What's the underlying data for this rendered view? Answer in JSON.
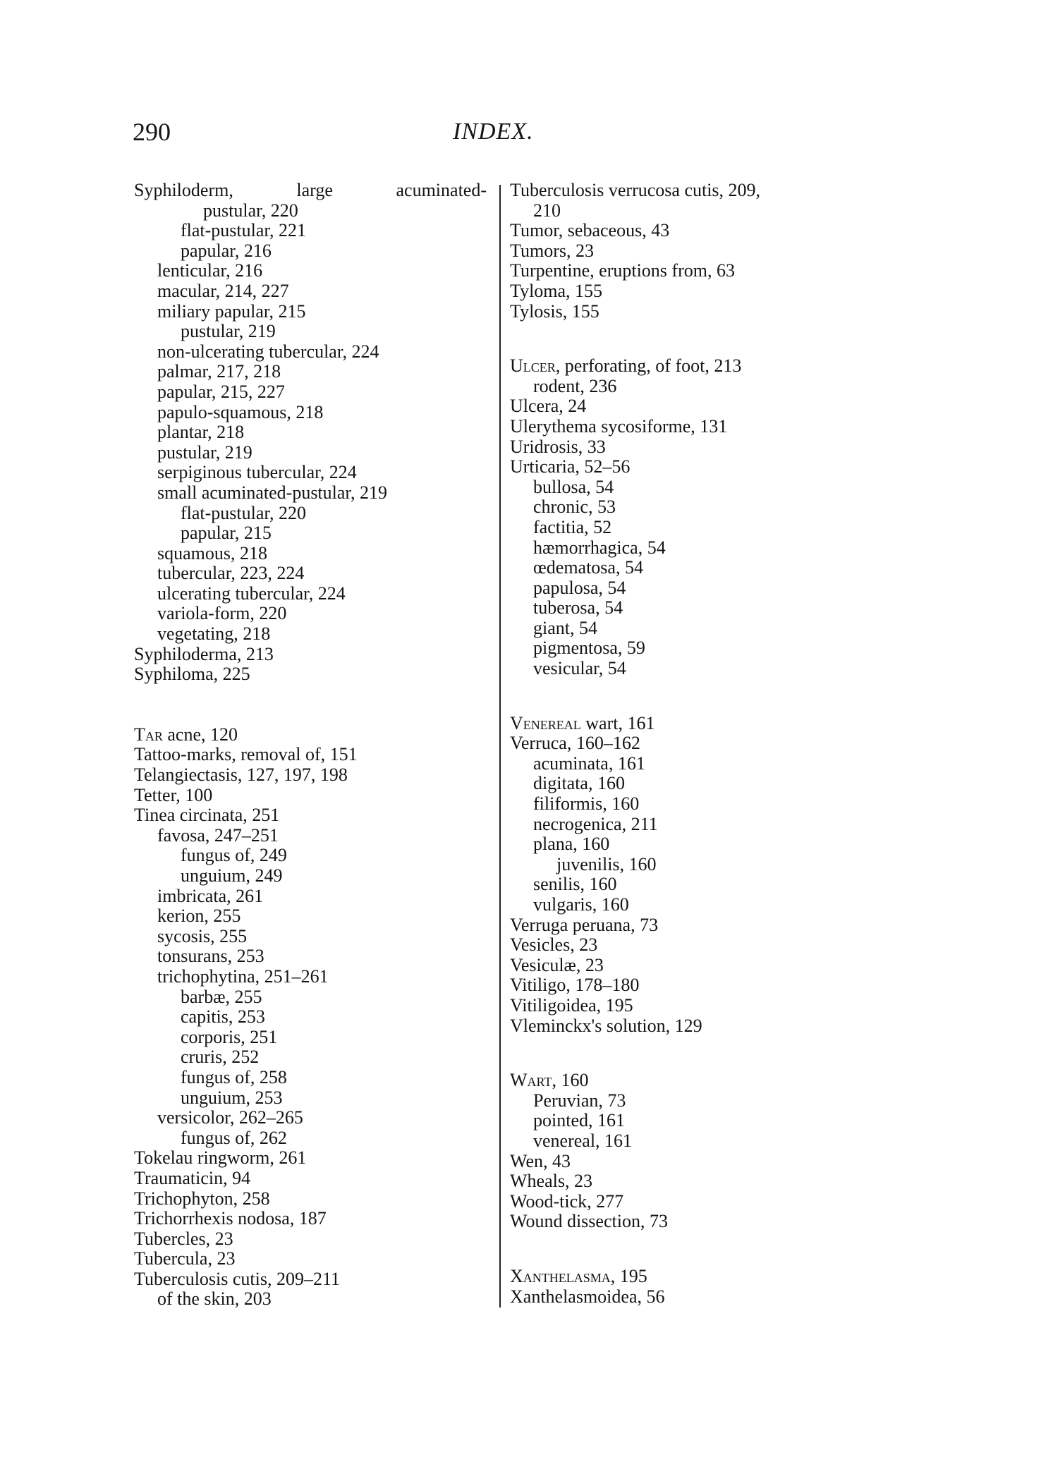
{
  "header": {
    "page_number": "290",
    "title": "INDEX."
  },
  "left_column": [
    {
      "text": "Syphiloderm, large acuminated-",
      "level": 0,
      "justify": true
    },
    {
      "text": "pustular, 220",
      "level": 3
    },
    {
      "text": "flat-pustular, 221",
      "level": 2
    },
    {
      "text": "papular, 216",
      "level": 2
    },
    {
      "text": "lenticular, 216",
      "level": 1
    },
    {
      "text": "macular, 214, 227",
      "level": 1
    },
    {
      "text": "miliary papular, 215",
      "level": 1
    },
    {
      "text": "pustular, 219",
      "level": 2
    },
    {
      "text": "non-ulcerating tubercular, 224",
      "level": 1
    },
    {
      "text": "palmar, 217, 218",
      "level": 1
    },
    {
      "text": "papular, 215, 227",
      "level": 1
    },
    {
      "text": "papulo-squamous, 218",
      "level": 1
    },
    {
      "text": "plantar, 218",
      "level": 1
    },
    {
      "text": "pustular, 219",
      "level": 1
    },
    {
      "text": "serpiginous tubercular, 224",
      "level": 1
    },
    {
      "text": "small acuminated-pustular, 219",
      "level": 1
    },
    {
      "text": "flat-pustular, 220",
      "level": 2
    },
    {
      "text": "papular, 215",
      "level": 2
    },
    {
      "text": "squamous, 218",
      "level": 1
    },
    {
      "text": "tubercular, 223, 224",
      "level": 1
    },
    {
      "text": "ulcerating tubercular, 224",
      "level": 1
    },
    {
      "text": "variola-form, 220",
      "level": 1
    },
    {
      "text": "vegetating, 218",
      "level": 1
    },
    {
      "text": "Syphiloderma, 213",
      "level": 0
    },
    {
      "text": "Syphiloma, 225",
      "level": 0
    },
    {
      "lead": "Tar",
      "text": " acne, 120",
      "level": 0,
      "gap": true
    },
    {
      "text": "Tattoo-marks, removal of, 151",
      "level": 0
    },
    {
      "text": "Telangiectasis, 127, 197, 198",
      "level": 0
    },
    {
      "text": "Tetter, 100",
      "level": 0
    },
    {
      "text": "Tinea circinata, 251",
      "level": 0
    },
    {
      "text": "favosa, 247–251",
      "level": 1
    },
    {
      "text": "fungus of, 249",
      "level": 2
    },
    {
      "text": "unguium, 249",
      "level": 2
    },
    {
      "text": "imbricata, 261",
      "level": 1
    },
    {
      "text": "kerion, 255",
      "level": 1
    },
    {
      "text": "sycosis, 255",
      "level": 1
    },
    {
      "text": "tonsurans, 253",
      "level": 1
    },
    {
      "text": "trichophytina, 251–261",
      "level": 1
    },
    {
      "text": "barbæ, 255",
      "level": 2
    },
    {
      "text": "capitis, 253",
      "level": 2
    },
    {
      "text": "corporis, 251",
      "level": 2
    },
    {
      "text": "cruris, 252",
      "level": 2
    },
    {
      "text": "fungus of, 258",
      "level": 2
    },
    {
      "text": "unguium, 253",
      "level": 2
    },
    {
      "text": "versicolor, 262–265",
      "level": 1
    },
    {
      "text": "fungus of, 262",
      "level": 2
    },
    {
      "text": "Tokelau ringworm, 261",
      "level": 0
    },
    {
      "text": "Traumaticin, 94",
      "level": 0
    },
    {
      "text": "Trichophyton, 258",
      "level": 0
    },
    {
      "text": "Trichorrhexis nodosa, 187",
      "level": 0
    },
    {
      "text": "Tubercles, 23",
      "level": 0
    },
    {
      "text": "Tubercula, 23",
      "level": 0
    },
    {
      "text": "Tuberculosis cutis, 209–211",
      "level": 0
    },
    {
      "text": "of the skin, 203",
      "level": 1
    }
  ],
  "right_column": [
    {
      "text": "Tuberculosis verrucosa cutis, 209,",
      "level": 0
    },
    {
      "text": "210",
      "level": 1
    },
    {
      "text": "Tumor, sebaceous, 43",
      "level": 0
    },
    {
      "text": "Tumors, 23",
      "level": 0
    },
    {
      "text": "Turpentine, eruptions from, 63",
      "level": 0
    },
    {
      "text": "Tyloma, 155",
      "level": 0
    },
    {
      "text": "Tylosis, 155",
      "level": 0
    },
    {
      "lead": "Ulcer",
      "text": ", perforating, of foot, 213",
      "level": 0,
      "gap": true
    },
    {
      "text": "rodent, 236",
      "level": 1
    },
    {
      "text": "Ulcera, 24",
      "level": 0
    },
    {
      "text": "Ulerythema sycosiforme, 131",
      "level": 0
    },
    {
      "text": "Uridrosis, 33",
      "level": 0
    },
    {
      "text": "Urticaria, 52–56",
      "level": 0
    },
    {
      "text": "bullosa, 54",
      "level": 1
    },
    {
      "text": "chronic, 53",
      "level": 1
    },
    {
      "text": "factitia, 52",
      "level": 1
    },
    {
      "text": "hæmorrhagica, 54",
      "level": 1
    },
    {
      "text": "œdematosa, 54",
      "level": 1
    },
    {
      "text": "papulosa, 54",
      "level": 1
    },
    {
      "text": "tuberosa, 54",
      "level": 1
    },
    {
      "text": "giant, 54",
      "level": 1
    },
    {
      "text": "pigmentosa, 59",
      "level": 1
    },
    {
      "text": "vesicular, 54",
      "level": 1
    },
    {
      "lead": "Venereal",
      "text": " wart, 161",
      "level": 0,
      "gap": true
    },
    {
      "text": "Verruca, 160–162",
      "level": 0
    },
    {
      "text": "acuminata, 161",
      "level": 1
    },
    {
      "text": "digitata, 160",
      "level": 1
    },
    {
      "text": "filiformis, 160",
      "level": 1
    },
    {
      "text": "necrogenica, 211",
      "level": 1
    },
    {
      "text": "plana, 160",
      "level": 1
    },
    {
      "text": "juvenilis, 160",
      "level": 2
    },
    {
      "text": "senilis, 160",
      "level": 1
    },
    {
      "text": "vulgaris, 160",
      "level": 1
    },
    {
      "text": "Verruga peruana, 73",
      "level": 0
    },
    {
      "text": "Vesicles, 23",
      "level": 0
    },
    {
      "text": "Vesiculæ, 23",
      "level": 0
    },
    {
      "text": "Vitiligo, 178–180",
      "level": 0
    },
    {
      "text": "Vitiligoidea, 195",
      "level": 0
    },
    {
      "text": "Vleminckx's solution, 129",
      "level": 0
    },
    {
      "lead": "Wart",
      "text": ", 160",
      "level": 0,
      "gap": true
    },
    {
      "text": "Peruvian, 73",
      "level": 1
    },
    {
      "text": "pointed, 161",
      "level": 1
    },
    {
      "text": "venereal, 161",
      "level": 1
    },
    {
      "text": "Wen, 43",
      "level": 0
    },
    {
      "text": "Wheals, 23",
      "level": 0
    },
    {
      "text": "Wood-tick, 277",
      "level": 0
    },
    {
      "text": "Wound dissection, 73",
      "level": 0
    },
    {
      "lead": "Xanthelasma",
      "text": ", 195",
      "level": 0,
      "gap": true
    },
    {
      "text": "Xanthelasmoidea, 56",
      "level": 0
    }
  ]
}
